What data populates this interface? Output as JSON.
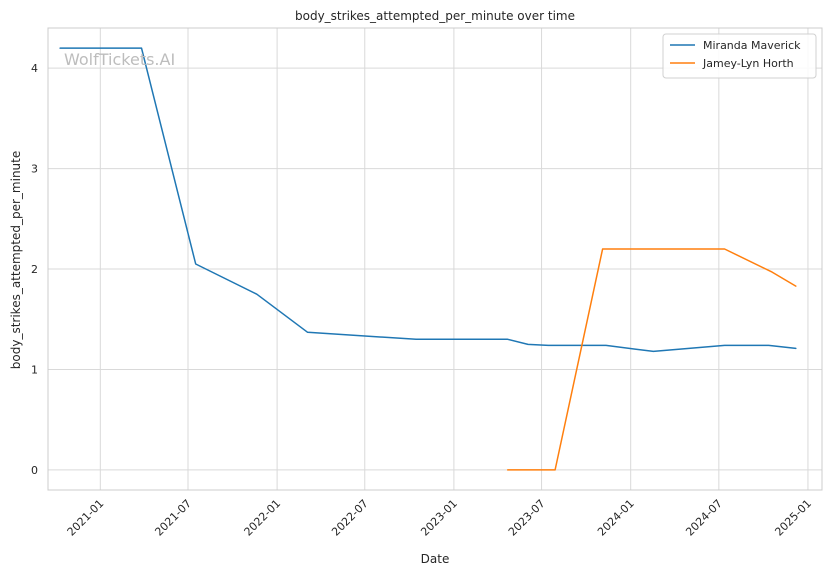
{
  "chart_data": {
    "type": "line",
    "title": "body_strikes_attempted_per_minute over time",
    "xlabel": "Date",
    "ylabel": "body_strikes_attempted_per_minute",
    "watermark": "WolfTickets.AI",
    "x_ticks": [
      "2021-01",
      "2021-07",
      "2022-01",
      "2022-07",
      "2023-01",
      "2023-07",
      "2024-01",
      "2024-07",
      "2025-01"
    ],
    "y_ticks": [
      0,
      1,
      2,
      3,
      4
    ],
    "ylim": [
      -0.2,
      4.4
    ],
    "xlim": [
      "2020-09-15",
      "2025-01-30"
    ],
    "grid": true,
    "legend_position": "top-right",
    "series": [
      {
        "name": "Miranda Maverick",
        "color": "#1f77b4",
        "points": [
          {
            "x": "2020-10-10",
            "y": 4.2
          },
          {
            "x": "2021-03-27",
            "y": 4.2
          },
          {
            "x": "2021-07-17",
            "y": 2.05
          },
          {
            "x": "2021-11-20",
            "y": 1.75
          },
          {
            "x": "2022-03-05",
            "y": 1.37
          },
          {
            "x": "2022-10-15",
            "y": 1.3
          },
          {
            "x": "2023-04-22",
            "y": 1.3
          },
          {
            "x": "2023-06-03",
            "y": 1.25
          },
          {
            "x": "2023-07-15",
            "y": 1.24
          },
          {
            "x": "2023-11-11",
            "y": 1.24
          },
          {
            "x": "2024-02-17",
            "y": 1.18
          },
          {
            "x": "2024-07-13",
            "y": 1.24
          },
          {
            "x": "2024-10-12",
            "y": 1.24
          },
          {
            "x": "2024-12-07",
            "y": 1.21
          }
        ]
      },
      {
        "name": "Jamey-Lyn Horth",
        "color": "#ff7f0e",
        "points": [
          {
            "x": "2023-04-22",
            "y": 0.0
          },
          {
            "x": "2023-07-29",
            "y": 0.0
          },
          {
            "x": "2023-11-04",
            "y": 2.2
          },
          {
            "x": "2024-07-13",
            "y": 2.2
          },
          {
            "x": "2024-10-19",
            "y": 1.97
          },
          {
            "x": "2024-12-07",
            "y": 1.83
          }
        ]
      }
    ]
  }
}
